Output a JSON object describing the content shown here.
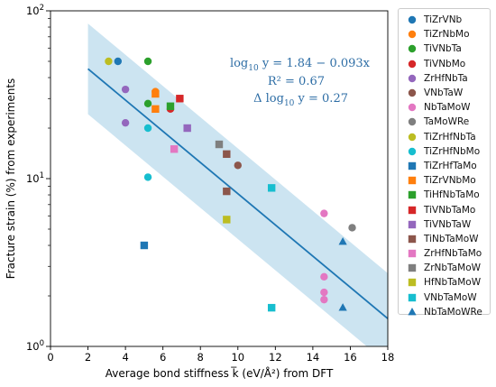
{
  "chart_data": {
    "type": "scatter",
    "xlabel": "Average bond stiffness k̅ (eV/Å²) from DFT",
    "ylabel": "Fracture strain (%) from experiments",
    "xlim": [
      0,
      18
    ],
    "ylim": [
      1,
      100
    ],
    "yscale": "log",
    "xticks": [
      "0",
      "2",
      "4",
      "6",
      "8",
      "10",
      "12",
      "14",
      "16",
      "18"
    ],
    "yticks": [
      {
        "value": 1,
        "base": "10",
        "exp": "0"
      },
      {
        "value": 10,
        "base": "10",
        "exp": "1"
      },
      {
        "value": 100,
        "base": "10",
        "exp": "2"
      }
    ],
    "grid": false,
    "legend_position": "outside-right",
    "annotation": {
      "equation_prefix": "log",
      "equation_sub": "10",
      "equation_suffix": " y = 1.84 − 0.093x",
      "r2": "R² = 0.67",
      "delta_prefix": "Δ log",
      "delta_sub": "10",
      "delta_suffix": " y = 0.27",
      "color": "#2d6da5"
    },
    "fit": {
      "intercept": 1.84,
      "slope": -0.093,
      "band": 0.27,
      "x_range": [
        2,
        18
      ],
      "line_color": "#1f77b4",
      "band_color": "#cce4f1"
    },
    "series": [
      {
        "name": "TiZrVNb",
        "marker": "circle",
        "color": "#1f77b4",
        "points": [
          [
            3.6,
            50
          ]
        ]
      },
      {
        "name": "TiZrNbMo",
        "marker": "circle",
        "color": "#ff7f0e",
        "points": [
          [
            5.6,
            33
          ]
        ]
      },
      {
        "name": "TiVNbTa",
        "marker": "circle",
        "color": "#2ca02c",
        "points": [
          [
            5.2,
            50
          ],
          [
            5.2,
            28
          ]
        ]
      },
      {
        "name": "TiVNbMo",
        "marker": "circle",
        "color": "#d62728",
        "points": [
          [
            6.4,
            26
          ]
        ]
      },
      {
        "name": "ZrHfNbTa",
        "marker": "circle",
        "color": "#9467bd",
        "points": [
          [
            4.0,
            34
          ],
          [
            4.0,
            21.5
          ]
        ]
      },
      {
        "name": "VNbTaW",
        "marker": "circle",
        "color": "#8c564b",
        "points": [
          [
            10.0,
            12
          ]
        ]
      },
      {
        "name": "NbTaMoW",
        "marker": "circle",
        "color": "#e377c2",
        "points": [
          [
            14.6,
            6.2
          ],
          [
            14.6,
            2.6
          ],
          [
            14.6,
            2.1
          ],
          [
            14.6,
            1.9
          ]
        ]
      },
      {
        "name": "TaMoWRe",
        "marker": "circle",
        "color": "#7f7f7f",
        "points": [
          [
            16.1,
            5.1
          ]
        ]
      },
      {
        "name": "TiZrHfNbTa",
        "marker": "circle",
        "color": "#bcbd22",
        "points": [
          [
            3.1,
            50
          ]
        ]
      },
      {
        "name": "TiZrHfNbMo",
        "marker": "circle",
        "color": "#17becf",
        "points": [
          [
            5.2,
            20
          ],
          [
            5.2,
            10.2
          ]
        ]
      },
      {
        "name": "TiZrHfTaMo",
        "marker": "square",
        "color": "#1f77b4",
        "points": [
          [
            5.0,
            4.0
          ]
        ]
      },
      {
        "name": "TiZrVNbMo",
        "marker": "square",
        "color": "#ff7f0e",
        "points": [
          [
            5.6,
            32
          ],
          [
            5.6,
            26
          ]
        ]
      },
      {
        "name": "TiHfNbTaMo",
        "marker": "square",
        "color": "#2ca02c",
        "points": [
          [
            6.4,
            27
          ]
        ]
      },
      {
        "name": "TiVNbTaMo",
        "marker": "square",
        "color": "#d62728",
        "points": [
          [
            6.9,
            30
          ]
        ]
      },
      {
        "name": "TiVNbTaW",
        "marker": "square",
        "color": "#9467bd",
        "points": [
          [
            7.3,
            20
          ]
        ]
      },
      {
        "name": "TiNbTaMoW",
        "marker": "square",
        "color": "#8c564b",
        "points": [
          [
            9.4,
            14
          ],
          [
            9.4,
            8.4
          ]
        ]
      },
      {
        "name": "ZrHfNbTaMo",
        "marker": "square",
        "color": "#e377c2",
        "points": [
          [
            6.6,
            15
          ]
        ]
      },
      {
        "name": "ZrNbTaMoW",
        "marker": "square",
        "color": "#7f7f7f",
        "points": [
          [
            9.0,
            16
          ]
        ]
      },
      {
        "name": "HfNbTaMoW",
        "marker": "square",
        "color": "#bcbd22",
        "points": [
          [
            9.4,
            5.7
          ]
        ]
      },
      {
        "name": "VNbTaMoW",
        "marker": "square",
        "color": "#17becf",
        "points": [
          [
            11.8,
            8.8
          ],
          [
            11.8,
            1.7
          ]
        ]
      },
      {
        "name": "NbTaMoWRe",
        "marker": "triangle",
        "color": "#1f77b4",
        "points": [
          [
            15.6,
            4.2
          ],
          [
            15.6,
            1.7
          ]
        ]
      }
    ]
  }
}
